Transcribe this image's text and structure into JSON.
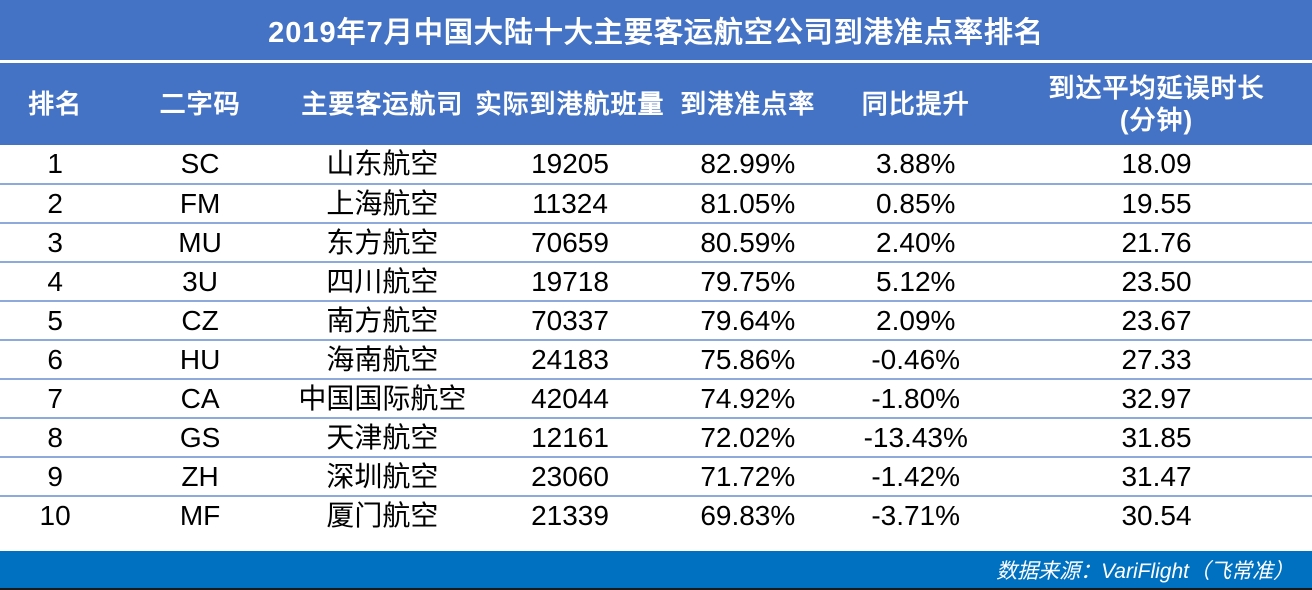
{
  "title": "2019年7月中国大陆十大主要客运航空公司到港准点率排名",
  "footer": {
    "source": "数据来源：VariFlight（飞常准）"
  },
  "colors": {
    "header_blue": "#4472C4",
    "footer_blue": "#0070C0",
    "row_separator": "#8EAADB",
    "header_text": "#FFFFFF",
    "body_text": "#000000"
  },
  "chart_data": {
    "type": "table",
    "title": "2019年7月中国大陆十大主要客运航空公司到港准点率排名",
    "columns": [
      "排名",
      "二字码",
      "主要客运航司",
      "实际到港航班量",
      "到港准点率",
      "同比提升",
      "到达平均延误时长\n(分钟)"
    ],
    "rows": [
      {
        "rank": "1",
        "code": "SC",
        "airline": "山东航空",
        "flights": "19205",
        "punctuality": "82.99%",
        "yoy": "3.88%",
        "delay": "18.09"
      },
      {
        "rank": "2",
        "code": "FM",
        "airline": "上海航空",
        "flights": "11324",
        "punctuality": "81.05%",
        "yoy": "0.85%",
        "delay": "19.55"
      },
      {
        "rank": "3",
        "code": "MU",
        "airline": "东方航空",
        "flights": "70659",
        "punctuality": "80.59%",
        "yoy": "2.40%",
        "delay": "21.76"
      },
      {
        "rank": "4",
        "code": "3U",
        "airline": "四川航空",
        "flights": "19718",
        "punctuality": "79.75%",
        "yoy": "5.12%",
        "delay": "23.50"
      },
      {
        "rank": "5",
        "code": "CZ",
        "airline": "南方航空",
        "flights": "70337",
        "punctuality": "79.64%",
        "yoy": "2.09%",
        "delay": "23.67"
      },
      {
        "rank": "6",
        "code": "HU",
        "airline": "海南航空",
        "flights": "24183",
        "punctuality": "75.86%",
        "yoy": "-0.46%",
        "delay": "27.33"
      },
      {
        "rank": "7",
        "code": "CA",
        "airline": "中国国际航空",
        "flights": "42044",
        "punctuality": "74.92%",
        "yoy": "-1.80%",
        "delay": "32.97"
      },
      {
        "rank": "8",
        "code": "GS",
        "airline": "天津航空",
        "flights": "12161",
        "punctuality": "72.02%",
        "yoy": "-13.43%",
        "delay": "31.85"
      },
      {
        "rank": "9",
        "code": "ZH",
        "airline": "深圳航空",
        "flights": "23060",
        "punctuality": "71.72%",
        "yoy": "-1.42%",
        "delay": "31.47"
      },
      {
        "rank": "10",
        "code": "MF",
        "airline": "厦门航空",
        "flights": "21339",
        "punctuality": "69.83%",
        "yoy": "-3.71%",
        "delay": "30.54"
      }
    ],
    "source": "数据来源：VariFlight（飞常准）"
  }
}
